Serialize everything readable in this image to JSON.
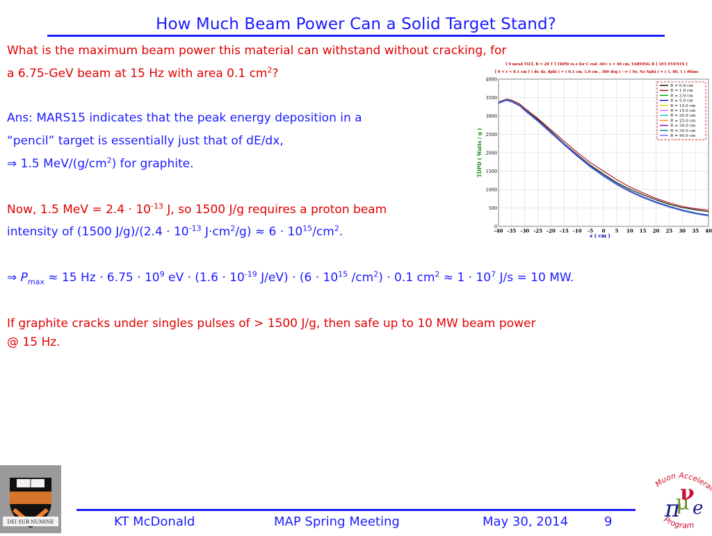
{
  "slide": {
    "title": "How Much Beam Power Can a Solid Target Stand?",
    "question_l1": "What is the maximum beam power this material can withstand without cracking, for",
    "question_l2_pre": "a 6.75-GeV beam at 15 Hz with area 0.1 cm",
    "question_l2_sup": "2",
    "question_l2_post": "?",
    "ans_l1": "Ans:  MARS15 indicates that the peak energy deposition in a",
    "ans_l2": "“pencil” target is essentially just that of dE/dx,",
    "ans_l3_arrow": "⇒",
    "ans_l3_pre": " 1.5 MeV/(g/cm",
    "ans_l3_sup": "2",
    "ans_l3_post": ") for graphite.",
    "now_l1_pre": "Now, 1.5 MeV = 2.4 · 10",
    "now_l1_sup": "-13",
    "now_l1_post": " J, so 1500 J/g requires a proton beam",
    "now_l2_a": "intensity of (1500 J/g)/(2.4 · 10",
    "now_l2_sup1": "-13",
    "now_l2_b": " J·cm",
    "now_l2_sup2": "2",
    "now_l2_c": "/g) ≈ 6 · 10",
    "now_l2_sup3": "15",
    "now_l2_d": "/cm",
    "now_l2_sup4": "2",
    "now_l2_e": ".",
    "pmax_arrow": "⇒",
    "pmax_p": " P",
    "pmax_sub": "max",
    "pmax_a": " ≈ 15 Hz · 6.75 · 10",
    "pmax_sup1": "9",
    "pmax_b": " eV · (1.6 · 10",
    "pmax_sup2": "-19",
    "pmax_c": " J/eV) · (6 · 10",
    "pmax_sup3": "15",
    "pmax_d": " /cm",
    "pmax_sup4": "2",
    "pmax_e": ") · 0.1 cm",
    "pmax_sup5": "2",
    "pmax_f": " ≈ 1 · 10",
    "pmax_sup6": "7",
    "pmax_g": " J/s = 10 MW.",
    "concl_l1": "If graphite cracks under singles pulses of > 1500 J/g, then safe up to 10 MW beam power",
    "concl_l2": "@ 15 Hz."
  },
  "footer": {
    "author": "KT McDonald",
    "meeting": "MAP Spring Meeting",
    "date": "May 30, 2014",
    "page": "9"
  },
  "logos": {
    "seal_motto": "DEI SUB NUMINE",
    "map_text_top": "Muon Accelerator",
    "map_text_bottom": "Program"
  },
  "chart_data": {
    "type": "line",
    "header_l1": "[ 0 mrad  TILT,  B = 20 T ]  TDPD  vs z  for C rod  -40< z < 40 cm,   VARYING R  [ 1E5 EVENTS ]",
    "header_l2": "[ 0 < r < 0.1 cm ]  ( dr, dz, dphi ) = ( 0.1 cm, 1.0 cm , 360 deg ) --> ( Nr, Nz Nphi ) = ( 1, 80, 1 ) #bins",
    "xlabel": "z ( cm )",
    "ylabel": "TDPD ( Watts / g )",
    "xlim": [
      -40,
      40
    ],
    "ylim": [
      0,
      4000
    ],
    "xticks": [
      "-40",
      "-35",
      "-30",
      "-25",
      "-20",
      "-15",
      "-10",
      "-5",
      "0",
      "5",
      "10",
      "15",
      "20",
      "25",
      "30",
      "35",
      "40"
    ],
    "yticks": [
      "0",
      "500",
      "1000",
      "1500",
      "2000",
      "2500",
      "3000",
      "3500",
      "4000"
    ],
    "grid": true,
    "legend_position": "top-right",
    "x": [
      -40,
      -37,
      -35,
      -32,
      -30,
      -25,
      -20,
      -15,
      -10,
      -5,
      0,
      5,
      10,
      15,
      20,
      25,
      30,
      35,
      40
    ],
    "series": [
      {
        "name": "R = 0.8 cm",
        "color": "#000000",
        "values": [
          3340,
          3440,
          3400,
          3300,
          3180,
          2900,
          2580,
          2250,
          1950,
          1660,
          1420,
          1190,
          1010,
          860,
          720,
          600,
          510,
          450,
          400
        ]
      },
      {
        "name": "R = 1.0 cm",
        "color": "#b00000",
        "values": [
          3380,
          3460,
          3430,
          3330,
          3210,
          2930,
          2620,
          2310,
          2010,
          1730,
          1500,
          1270,
          1070,
          910,
          760,
          640,
          540,
          480,
          440
        ]
      },
      {
        "name": "R = 3.0 cm",
        "color": "#00a000",
        "values": [
          3360,
          3440,
          3400,
          3290,
          3160,
          2870,
          2550,
          2230,
          1920,
          1630,
          1380,
          1150,
          960,
          800,
          660,
          540,
          440,
          360,
          300
        ]
      },
      {
        "name": "R = 5.0 cm",
        "color": "#0000e0",
        "values": [
          3350,
          3430,
          3390,
          3280,
          3150,
          2860,
          2540,
          2220,
          1910,
          1620,
          1370,
          1140,
          950,
          790,
          650,
          530,
          430,
          350,
          290
        ]
      },
      {
        "name": "R = 10.0 cm",
        "color": "#d8d800",
        "values": [
          3360,
          3440,
          3400,
          3290,
          3160,
          2870,
          2550,
          2230,
          1920,
          1630,
          1380,
          1150,
          960,
          800,
          660,
          540,
          440,
          360,
          300
        ]
      },
      {
        "name": "R = 15.0 cm",
        "color": "#e060e0",
        "values": [
          3340,
          3420,
          3380,
          3270,
          3140,
          2850,
          2530,
          2210,
          1900,
          1610,
          1360,
          1130,
          940,
          780,
          640,
          520,
          420,
          340,
          280
        ]
      },
      {
        "name": "R = 20.0 cm",
        "color": "#00c0c0",
        "values": [
          3370,
          3450,
          3410,
          3300,
          3170,
          2880,
          2560,
          2240,
          1930,
          1640,
          1390,
          1160,
          970,
          810,
          670,
          550,
          450,
          370,
          310
        ]
      },
      {
        "name": "R = 25.0 cm",
        "color": "#ff8000",
        "values": [
          3350,
          3430,
          3390,
          3280,
          3150,
          2860,
          2540,
          2220,
          1910,
          1620,
          1370,
          1140,
          950,
          790,
          650,
          530,
          430,
          350,
          290
        ]
      },
      {
        "name": "R = 30.0 cm",
        "color": "#8000a0",
        "values": [
          3360,
          3440,
          3400,
          3290,
          3160,
          2870,
          2550,
          2230,
          1920,
          1630,
          1380,
          1150,
          960,
          800,
          660,
          540,
          440,
          360,
          300
        ]
      },
      {
        "name": "R = 35.0 cm",
        "color": "#008080",
        "values": [
          3350,
          3430,
          3390,
          3280,
          3150,
          2860,
          2540,
          2220,
          1910,
          1620,
          1370,
          1140,
          950,
          790,
          650,
          530,
          430,
          350,
          290
        ]
      },
      {
        "name": "R = 40.0 cm",
        "color": "#6060ff",
        "values": [
          3340,
          3420,
          3380,
          3270,
          3140,
          2850,
          2530,
          2210,
          1900,
          1610,
          1360,
          1130,
          940,
          780,
          640,
          520,
          420,
          340,
          280
        ]
      }
    ]
  }
}
